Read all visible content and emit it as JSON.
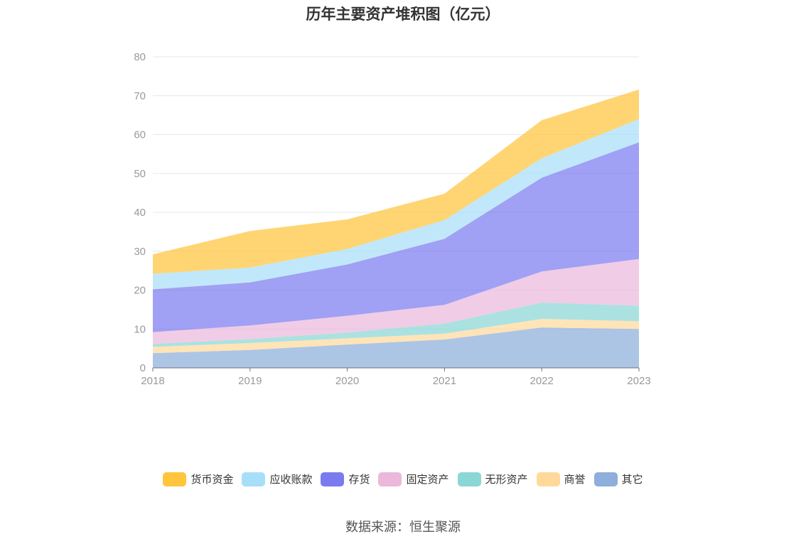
{
  "chart_data": {
    "type": "area",
    "stacked": true,
    "title": "历年主要资产堆积图（亿元）",
    "x": [
      "2018",
      "2019",
      "2020",
      "2021",
      "2022",
      "2023"
    ],
    "ylim": [
      0,
      80
    ],
    "yticks": [
      0,
      10,
      20,
      30,
      40,
      50,
      60,
      70,
      80
    ],
    "grid": true,
    "legend_position": "bottom",
    "series": [
      {
        "name": "其它",
        "color": "#8eaedb",
        "values": [
          3.8,
          4.6,
          6.0,
          7.3,
          10.4,
          10.0
        ]
      },
      {
        "name": "商誉",
        "color": "#ffd99b",
        "values": [
          1.6,
          1.8,
          1.6,
          1.5,
          2.2,
          2.0
        ]
      },
      {
        "name": "无形资产",
        "color": "#8ad7d6",
        "values": [
          0.8,
          1.0,
          1.5,
          2.6,
          4.2,
          4.0
        ]
      },
      {
        "name": "固定资产",
        "color": "#ebb8dc",
        "values": [
          3.0,
          3.5,
          4.3,
          4.8,
          8.0,
          12.0
        ]
      },
      {
        "name": "存货",
        "color": "#7b7bf0",
        "values": [
          11.0,
          11.1,
          13.2,
          17.0,
          24.1,
          30.0
        ]
      },
      {
        "name": "应收账款",
        "color": "#a7dff8",
        "values": [
          4.0,
          3.8,
          4.0,
          4.8,
          5.0,
          6.0
        ]
      },
      {
        "name": "货币资金",
        "color": "#ffc53d",
        "values": [
          5.0,
          9.4,
          7.6,
          6.8,
          9.8,
          7.6
        ]
      }
    ]
  },
  "legend_order": [
    "货币资金",
    "应收账款",
    "存货",
    "固定资产",
    "无形资产",
    "商誉",
    "其它"
  ],
  "source": "数据来源：恒生聚源"
}
